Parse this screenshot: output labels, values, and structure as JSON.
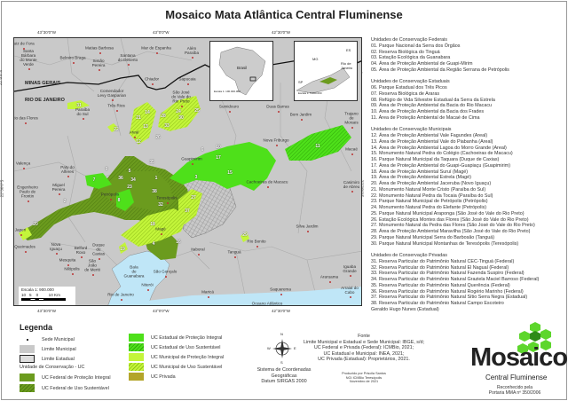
{
  "title": "Mosaico Mata Atlântica Central Fluminense",
  "coords": {
    "lon": [
      "43°30'0\"W",
      "43°0'0\"W",
      "42°30'0\"W"
    ],
    "lat": [
      "22°0'0\"S",
      "22°30'0\"S"
    ]
  },
  "map": {
    "states": [
      "MINAS GERAIS",
      "RIO DE JANEIRO"
    ],
    "cities": [
      "Juiz de Fora",
      "Santa\nBárbara\ndo Monte\nVerde",
      "Matias Barbosa",
      "Belmiro Braga",
      "Santana\ndo Deserto",
      "Simão\nPereira",
      "Mar de Espanha",
      "Além\nParaíba",
      "Chiador",
      "Sapucaia",
      "Comendador\nLevy Gasparian",
      "Três Rios",
      "Paraíba\ndo Sul",
      "Rio das Flores",
      "São José\ndo Vale do\nRio Preto",
      "Areal",
      "Sumidouro",
      "Duas Barras",
      "Bom Jardim",
      "Trajano\nde\nMoraes",
      "Nova Friburgo",
      "Macaé",
      "Cachoeiras de Macacu",
      "Casimiro\nde Abreu",
      "Silva Jardim",
      "Rio Bonito",
      "Tanguá",
      "Itaboraí",
      "Maricá",
      "Saquarema",
      "Araruama",
      "Iguaba\nGrande",
      "Arraial do\nCabo",
      "Oceano Atlântico",
      "Valença",
      "Paty do\nAlferes",
      "Miguel\nPereira",
      "Engenheiro\nPaulo de\nFrontin",
      "Petrópolis",
      "Teresópolis",
      "Japeri",
      "Queimados",
      "Nova\nIguaçu",
      "Belford\nRoxo",
      "Duque\nde\nCaxias",
      "Mesquita",
      "Nilópolis",
      "São\nJoão\nde Meriti",
      "Magé",
      "Baía\nde\nGuanabara",
      "São Gonçalo",
      "Niterói",
      "Rio de Janeiro",
      "Guapimirim"
    ],
    "uc_numbers": [
      "31",
      "22",
      "33",
      "13",
      "14",
      "12",
      "21",
      "24",
      "30",
      "25",
      "28",
      "26",
      "9",
      "7",
      "36",
      "1",
      "5",
      "35",
      "23",
      "2",
      "38",
      "6",
      "10",
      "3",
      "8",
      "20",
      "32",
      "18",
      "37",
      "27",
      "4",
      "19",
      "15",
      "29",
      "11",
      "16",
      "17",
      "34"
    ],
    "inset_brazil": {
      "label": "Brasil",
      "scale": "Escala 1: 100.000.000"
    },
    "inset_rj": {
      "labels": [
        "MG",
        "Rio de\nJaneiro",
        "ES",
        "SP"
      ],
      "scale": "Escala 1: 5.000.000"
    },
    "scale": {
      "label": "Escala 1: 900.000",
      "ticks": "10   5    0         10 Km"
    }
  },
  "list": [
    {
      "heading": "Unidades de Conservação Federais",
      "items": [
        "01. Parque Nacional da Serra dos Órgãos",
        "02. Reserva Biológica do Tinguá",
        "03. Estação Ecológica da Guanabara",
        "04. Área de Proteção Ambiental de Guapi-Mirim",
        "05. Área de Proteção Ambiental da Região Serrana de Petrópolis"
      ]
    },
    {
      "heading": "Unidades de Conservação Estaduais",
      "items": [
        "06. Parque Estadual dos Três Picos",
        "07. Reserva Biológica de Araras",
        "08. Refúgio de Vida Silvestre Estadual da Serra da Estrela",
        "09. Área de Proteção Ambiental da Bacia do Rio Macacu",
        "10. Área de Proteção Ambiental da Bacia dos Frades",
        "11. Área de Proteção Ambiental de Macaé de Cima"
      ]
    },
    {
      "heading": "Unidades de Conservação Municipais",
      "items": [
        "12. Área de Proteção Ambiental Vale Fagundes (Areal)",
        "13. Área de Proteção Ambiental Vale do Piabanha (Areal)",
        "14. Área de Proteção Ambiental Lagoa do Morro Grande (Areal)",
        "15. Monumento Natural Pedra do Colégio (Cachoeiras de Macacu)",
        "16. Parque Natural Municipal da Taquara (Duque de Caxias)",
        "17. Área de Proteção Ambiental do Guapi-Guapiaçu (Guapimirim)",
        "18. Área de Proteção Ambiental Suruí (Magé)",
        "19. Área de Proteção Ambiental Estrela (Magé)",
        "20. Área de Proteção Ambiental Jaceruba (Novo Iguaçu)",
        "21. Monumento Natural Monte Cristo (Paraíba do Sul)",
        "22. Monumento Natural Pedra da Tocaia (Paraíba do Sul)",
        "23. Parque Natural Municipal de Petrópolis (Petrópolis)",
        "24. Monumento Natural Pedra do Elefante (Petrópolis)",
        "25. Parque Natural Municipal Araponga (São José do Vale do Rio Preto)",
        "26. Estação Ecológica Montes das Flores (São José do Vale do Rio Preto)",
        "27. Monumento Natural da Pedra das Flores (São José do Vale do Rio Preto)",
        "28. Área de Proteção Ambiental Maravilha (São José do Vale do Rio Preto)",
        "29. Parque Natural Municipal Serra do Barbosão (Tanguá)",
        "30. Parque Natural Municipal Montanhas de Teresópolis (Teresópolis)"
      ]
    },
    {
      "heading": "Unidades de Conservação Privadas",
      "items": [
        "31. Reserva Particular do Patrimônio Natural CEC-Tinguá (Federal)",
        "32. Reserva Particular do Patrimônio Natural El Nagual (Federal)",
        "33. Reserva Particular do Patrimônio Natural Fazenda Suspiro (Federal)",
        "34. Reserva Particular do Patrimônio Natural Graziela Maciel Barroso (Federal)",
        "35. Reserva Particular do Patrimônio Natural Querência (Federal)",
        "36. Reserva Particular do Patrimônio Natural Rogério Marinho (Federal)",
        "37. Reserva Particular do Patrimônio Natural Sítio Serra Negra (Estadual)",
        "38. Reserva Particular do Patrimônio Natural Campo Escoteiro",
        "Geraldo Hugo Nunes (Estadual)"
      ]
    }
  ],
  "legend": {
    "title": "Legenda",
    "sede": "Sede Municipal",
    "lim_mun": "Limite Municipal",
    "lim_est": "Limite Estadual",
    "uc_heading": "Unidade de Conservação - UC",
    "fed_pi": "UC Federal de Proteção Integral",
    "fed_us": "UC Federal de Uso Sustentável",
    "est_pi": "UC Estadual de Proteção Integral",
    "est_us": "UC Estadual de Uso Sustentável",
    "mun_pi": "UC Municipal de Proteção Integral",
    "mun_us": "UC Municipal de Uso Sustentável",
    "priv": "UC Privada"
  },
  "colors": {
    "federal": "#6b9b1e",
    "estadual": "#4ee01a",
    "municipal": "#c3f53a",
    "privada": "#b3a52a",
    "water": "#bfe6f7",
    "land": "#c9c9c9"
  },
  "compass": {
    "n": "N",
    "s": "S",
    "e": "E",
    "w": "W"
  },
  "crs": [
    "Sistema de Coordenadas",
    "Geográficas",
    "Datum SIRGAS 2000"
  ],
  "source": {
    "heading": "Fonte",
    "lines": [
      "Limite Municipal e Estadual e Sede Municipal: IBGE, s/d;",
      "UC Federal e Privada (Federal): ICMBio, 2021;",
      "UC Estadual e Municipal: INEA, 2021;",
      "UC Privada (Estadual): Proprietários, 2021."
    ]
  },
  "credits": [
    "Produzido por Priscila Santos",
    "NGI ICMBio Teresópolis",
    "Novembro de 2021"
  ],
  "logo": {
    "word": "Mosaico",
    "sub": "Central Fluminense",
    "recog": [
      "Reconhecido pela",
      "Portaria MMA nº 350/2006"
    ]
  }
}
